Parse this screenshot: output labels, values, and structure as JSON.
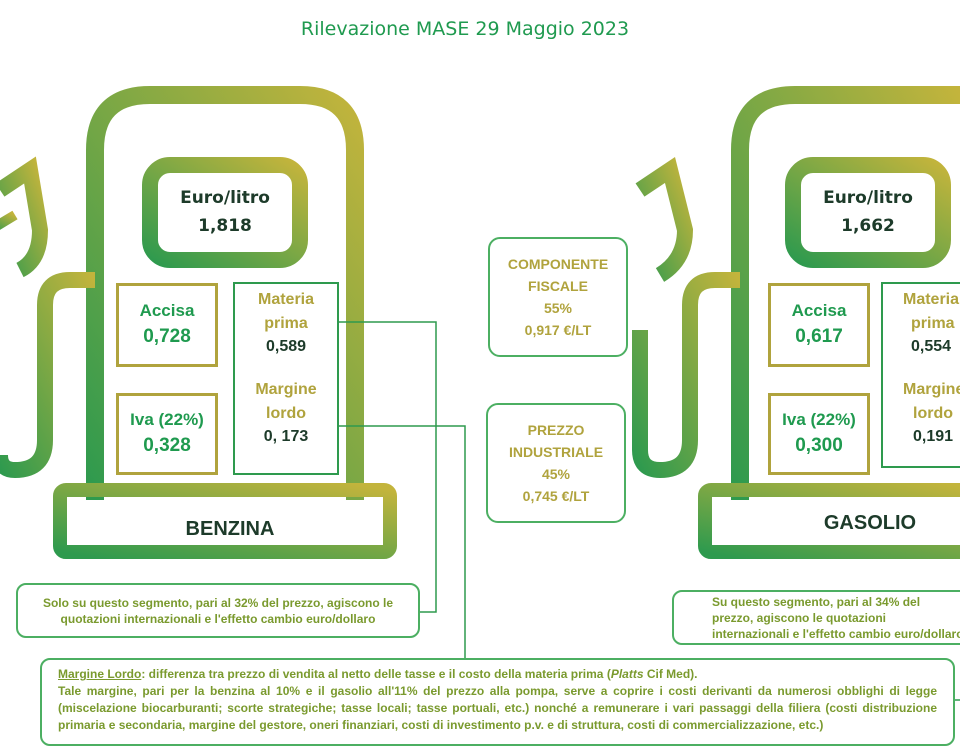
{
  "title": "Rilevazione MASE 29 Maggio 2023",
  "benzina": {
    "screen_label": "Euro/litro",
    "price": "1,818",
    "accisa_label": "Accisa",
    "accisa_value": "0,728",
    "iva_label": "Iva (22%)",
    "iva_value": "0,328",
    "materia_label_1": "Materia",
    "materia_label_2": "prima",
    "materia_value": "0,589",
    "margine_label_1": "Margine",
    "margine_label_2": "lordo",
    "margine_value": "0, 173",
    "fuel_label": "BENZINA",
    "note": "Solo su questo segmento, pari al 32% del prezzo, agiscono le quotazioni internazionali e l'effetto cambio euro/dollaro"
  },
  "gasolio": {
    "screen_label": "Euro/litro",
    "price": "1,662",
    "accisa_label": "Accisa",
    "accisa_value": "0,617",
    "iva_label": "Iva (22%)",
    "iva_value": "0,300",
    "materia_label_1": "Materia",
    "materia_label_2": "prima",
    "materia_value": "0,554",
    "margine_label_1": "Margine",
    "margine_label_2": "lordo",
    "margine_value": "0,191",
    "fuel_label": "GASOLIO",
    "note": "Su questo segmento, pari al 34% del prezzo, agiscono le quotazioni internazionali e l'effetto cambio euro/dollaro"
  },
  "componente_fiscale": {
    "label_1": "COMPONENTE",
    "label_2": "FISCALE",
    "percent": "55%",
    "value": "0,917 €/LT"
  },
  "prezzo_industriale": {
    "label_1": "PREZZO",
    "label_2": "INDUSTRIALE",
    "percent": "45%",
    "value": "0,745 €/LT"
  },
  "footer": {
    "term": "Margine Lordo",
    "line1_after_term": ": differenza tra prezzo di vendita al netto delle tasse e il costo della materia prima (",
    "source_italic": "Platts",
    "line1_end": " Cif Med).",
    "body": "Tale margine, pari per la benzina al 10% e il gasolio all'11% del prezzo alla pompa, serve a coprire i costi derivanti da numerosi obblighi di legge (miscelazione biocarburanti; scorte strategiche; tasse locali; tasse portuali, etc.) nonché a remunerare i vari passaggi della filiera (costi distribuzione primaria e secondaria, margine del gestore, oneri finanziari, costi di investimento p.v. e di struttura, costi di commercializzazione, etc.)"
  },
  "colors": {
    "green": "#1f9a4f",
    "olive": "#b0a33d",
    "dark": "#1d3b2a"
  }
}
